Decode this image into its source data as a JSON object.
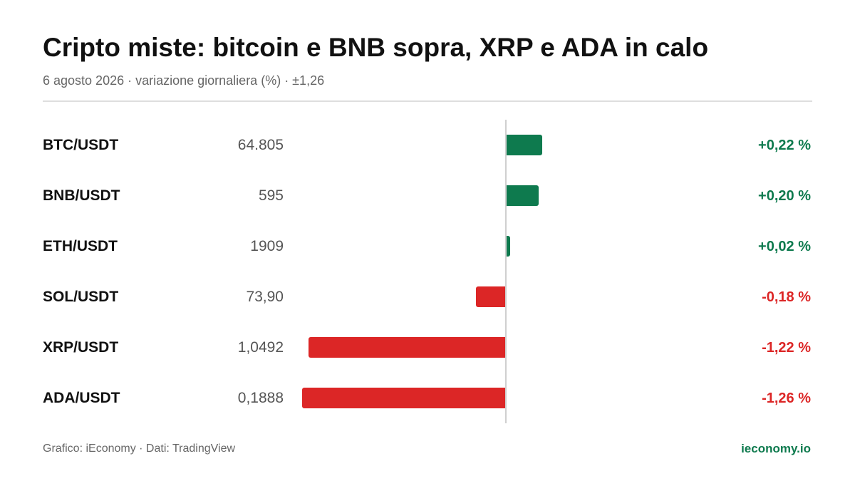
{
  "title": "Cripto miste: bitcoin e BNB sopra, XRP e ADA in calo",
  "subtitle": "6 agosto 2026 · variazione giornaliera (%) · ±1,26",
  "footer": {
    "source": "Grafico: iEconomy · Dati: TradingView",
    "brand": "ieconomy.io"
  },
  "colors": {
    "positive": "#0e7a4e",
    "negative": "#dc2626",
    "brand": "#0e7a4e"
  },
  "chart_data": {
    "type": "bar",
    "orientation": "horizontal",
    "categories": [
      "BTC/USDT",
      "BNB/USDT",
      "ETH/USDT",
      "SOL/USDT",
      "XRP/USDT",
      "ADA/USDT"
    ],
    "prices": [
      "64.805",
      "595",
      "1909",
      "73,90",
      "1,0492",
      "0,1888"
    ],
    "values": [
      0.22,
      0.2,
      0.02,
      -0.18,
      -1.22,
      -1.26
    ],
    "value_labels": [
      "+0,22 %",
      "+0,20 %",
      "+0,02 %",
      "-0,18 %",
      "-1,22 %",
      "-1,26 %"
    ],
    "xlim": [
      -1.26,
      1.26
    ],
    "grid": false
  }
}
